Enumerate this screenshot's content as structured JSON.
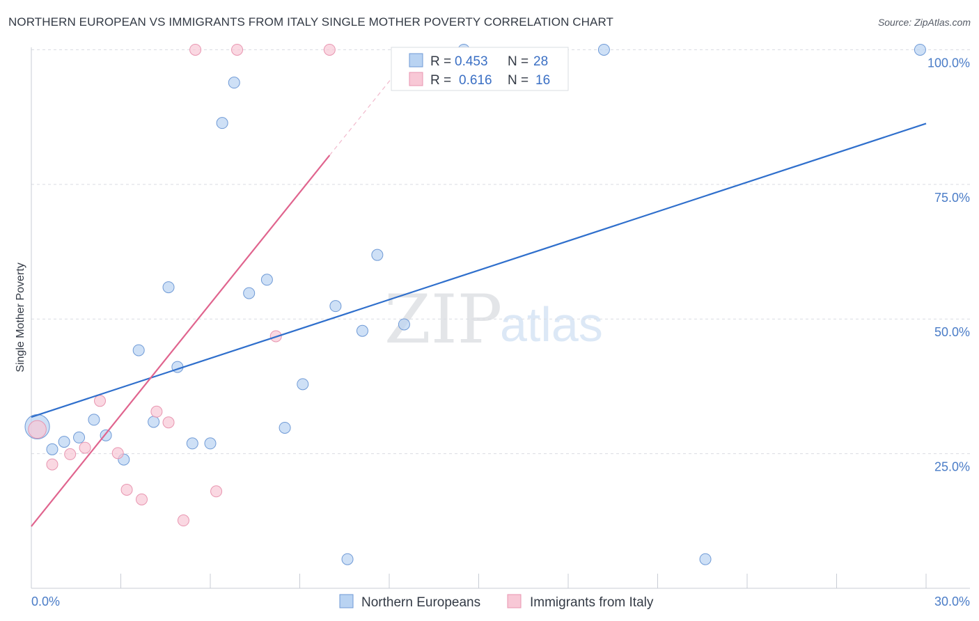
{
  "header": {
    "title": "NORTHERN EUROPEAN VS IMMIGRANTS FROM ITALY SINGLE MOTHER POVERTY CORRELATION CHART",
    "source": "Source: ZipAtlas.com"
  },
  "watermark": {
    "zip": "ZIP",
    "atlas": "atlas"
  },
  "colors": {
    "blue_fill": "#b9d3f2",
    "blue_stroke": "#6f9ad6",
    "blue_line": "#2f6fcc",
    "pink_fill": "#f8c8d6",
    "pink_stroke": "#e895b0",
    "pink_line": "#e0648e",
    "grid": "#d9dce2",
    "axis_label": "#4a7cc7"
  },
  "legend": {
    "rows": [
      {
        "r_label": "R =",
        "r_value": "0.453",
        "n_label": "N =",
        "n_value": "28"
      },
      {
        "r_label": "R =",
        "r_value": "0.616",
        "n_label": "N =",
        "n_value": "16"
      }
    ]
  },
  "chart_data": {
    "type": "scatter",
    "title": "NORTHERN EUROPEAN VS IMMIGRANTS FROM ITALY SINGLE MOTHER POVERTY CORRELATION CHART",
    "xlabel": "",
    "ylabel": "Single Mother Poverty",
    "xlim": [
      0,
      30
    ],
    "ylim": [
      0,
      102
    ],
    "x_tick_labels": [
      "0.0%",
      "30.0%"
    ],
    "y_ticks": [
      25,
      50,
      75,
      100
    ],
    "y_tick_labels": [
      "25.0%",
      "50.0%",
      "75.0%",
      "100.0%"
    ],
    "grid": true,
    "legend_position": "top-center",
    "series": [
      {
        "name": "Northern Europeans",
        "color": "#b9d3f2",
        "points": [
          [
            0.2,
            30.0,
            2.2
          ],
          [
            0.7,
            25.8,
            1
          ],
          [
            1.1,
            27.2,
            1
          ],
          [
            1.6,
            28.0,
            1
          ],
          [
            2.1,
            31.3,
            1
          ],
          [
            2.5,
            28.4,
            1
          ],
          [
            3.1,
            23.9,
            1
          ],
          [
            3.6,
            44.2,
            1
          ],
          [
            4.1,
            30.9,
            1
          ],
          [
            4.6,
            55.9,
            1
          ],
          [
            4.9,
            41.1,
            1
          ],
          [
            5.4,
            26.9,
            1
          ],
          [
            6.0,
            26.9,
            1
          ],
          [
            6.4,
            86.4,
            1
          ],
          [
            6.8,
            93.9,
            1
          ],
          [
            7.3,
            54.8,
            1
          ],
          [
            7.9,
            57.3,
            1
          ],
          [
            8.5,
            29.8,
            1
          ],
          [
            9.1,
            37.9,
            1
          ],
          [
            10.2,
            52.4,
            1
          ],
          [
            10.6,
            5.4,
            1
          ],
          [
            11.1,
            47.8,
            1
          ],
          [
            11.6,
            61.9,
            1
          ],
          [
            12.5,
            49.0,
            1
          ],
          [
            14.5,
            100.0,
            1
          ],
          [
            19.2,
            100.0,
            1
          ],
          [
            22.6,
            5.4,
            1
          ],
          [
            29.8,
            100.0,
            1
          ]
        ],
        "trend": {
          "x": [
            0,
            30
          ],
          "y": [
            31.8,
            86.3
          ]
        }
      },
      {
        "name": "Immigrants from Italy",
        "color": "#f8c8d6",
        "points": [
          [
            0.2,
            29.5,
            1.6
          ],
          [
            0.7,
            23.0,
            1
          ],
          [
            1.3,
            24.9,
            1
          ],
          [
            1.8,
            26.1,
            1
          ],
          [
            2.3,
            34.8,
            1
          ],
          [
            2.9,
            25.1,
            1
          ],
          [
            3.2,
            18.3,
            1
          ],
          [
            3.7,
            16.5,
            1
          ],
          [
            4.2,
            32.8,
            1
          ],
          [
            4.6,
            30.8,
            1
          ],
          [
            5.1,
            12.6,
            1
          ],
          [
            5.5,
            100.0,
            1
          ],
          [
            6.2,
            18.0,
            1
          ],
          [
            6.9,
            100.0,
            1
          ],
          [
            8.2,
            46.8,
            1
          ],
          [
            10.0,
            100.0,
            1
          ]
        ],
        "trend": {
          "x": [
            0,
            10
          ],
          "y": [
            11.5,
            80.4
          ]
        },
        "trend_dashed": {
          "x": [
            10,
            12.3
          ],
          "y": [
            80.4,
            96.2
          ]
        }
      }
    ]
  }
}
